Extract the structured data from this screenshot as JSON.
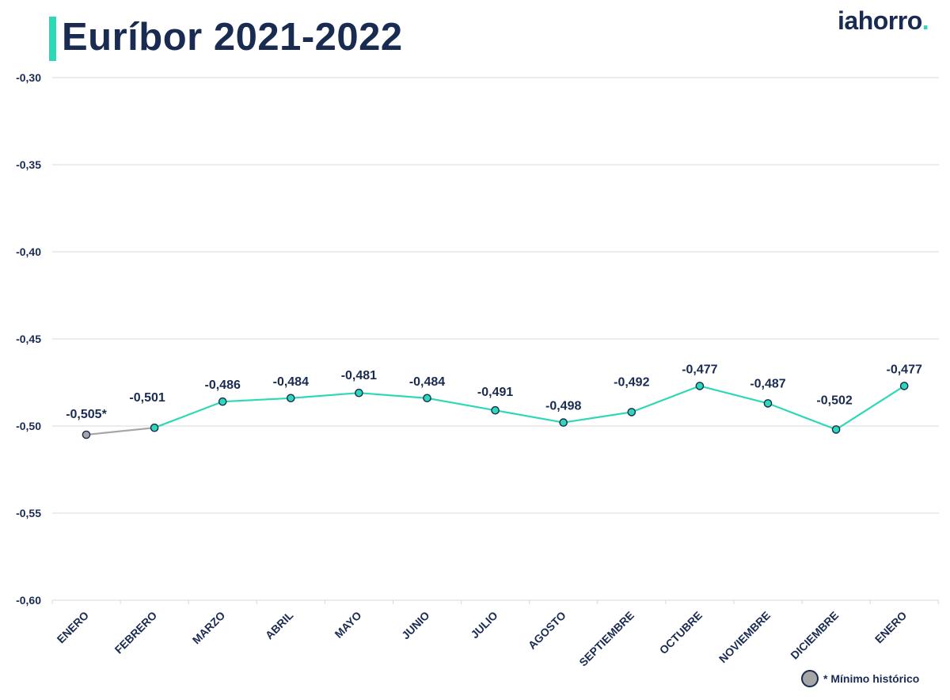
{
  "header": {
    "title": "Euríbor 2021-2022",
    "logo_text": "iahorro",
    "logo_dot": "."
  },
  "legend": {
    "label": "* Mínimo histórico",
    "swatch_color": "#a6a6a6"
  },
  "colors": {
    "accent": "#2ed8b6",
    "text": "#1a2b52",
    "highlight": "#a6a6a6",
    "grid": "#d9d9d9"
  },
  "chart_data": {
    "type": "line",
    "title": "Euríbor 2021-2022",
    "xlabel": "",
    "ylabel": "",
    "ylim": [
      -0.6,
      -0.3
    ],
    "yticks": [
      -0.3,
      -0.35,
      -0.4,
      -0.45,
      -0.5,
      -0.55,
      -0.6
    ],
    "ytick_labels": [
      "-0,30",
      "-0,35",
      "-0,40",
      "-0,45",
      "-0,50",
      "-0,55",
      "-0,60"
    ],
    "grid": true,
    "categories": [
      "ENERO",
      "FEBRERO",
      "MARZO",
      "ABRIL",
      "MAYO",
      "JUNIO",
      "JULIO",
      "AGOSTO",
      "SEPTIEMBRE",
      "OCTUBRE",
      "NOVIEMBRE",
      "DICIEMBRE",
      "ENERO"
    ],
    "values": [
      -0.505,
      -0.501,
      -0.486,
      -0.484,
      -0.481,
      -0.484,
      -0.491,
      -0.498,
      -0.492,
      -0.477,
      -0.487,
      -0.502,
      -0.477
    ],
    "data_labels": [
      "-0,505*",
      "-0,501",
      "-0,486",
      "-0,484",
      "-0,481",
      "-0,484",
      "-0,491",
      "-0,498",
      "-0,492",
      "-0,477",
      "-0,487",
      "-0,502",
      "-0,477"
    ],
    "highlight_index": 0,
    "legend_position": "bottom-right"
  }
}
